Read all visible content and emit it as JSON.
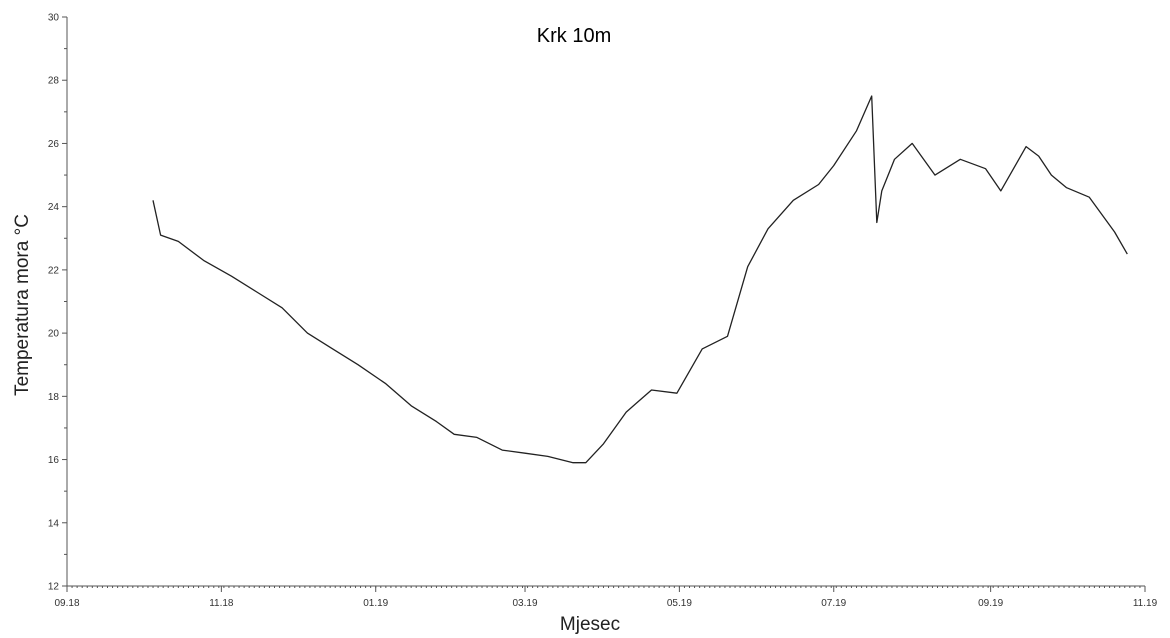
{
  "chart_data": {
    "type": "line",
    "title": "Krk 10m",
    "xlabel": "Mjesec",
    "ylabel": "Temperatura mora °C",
    "ylim": [
      12,
      30
    ],
    "y_ticks": [
      "12",
      "14",
      "16",
      "18",
      "20",
      "22",
      "24",
      "26",
      "28",
      "30"
    ],
    "x_ticks": [
      "09.18",
      "11.18",
      "01.19",
      "03.19",
      "05.19",
      "07.19",
      "09.19",
      "11.19"
    ],
    "xlim": [
      "2018-09-01",
      "2019-11-01"
    ],
    "grid": false,
    "line_color": "#222222",
    "series": [
      {
        "x": [
          "2018-10-05",
          "2018-10-08",
          "2018-10-15",
          "2018-10-25",
          "2018-11-05",
          "2018-11-15",
          "2018-11-25",
          "2018-12-05",
          "2018-12-15",
          "2018-12-25",
          "2019-01-05",
          "2019-01-15",
          "2019-01-25",
          "2019-02-01",
          "2019-02-10",
          "2019-02-20",
          "2019-03-01",
          "2019-03-10",
          "2019-03-20",
          "2019-03-25",
          "2019-04-01",
          "2019-04-10",
          "2019-04-20",
          "2019-04-30",
          "2019-05-10",
          "2019-05-20",
          "2019-05-28",
          "2019-06-05",
          "2019-06-15",
          "2019-06-25",
          "2019-07-01",
          "2019-07-10",
          "2019-07-16",
          "2019-07-18",
          "2019-07-20",
          "2019-07-25",
          "2019-08-01",
          "2019-08-10",
          "2019-08-20",
          "2019-08-30",
          "2019-09-05",
          "2019-09-15",
          "2019-09-20",
          "2019-09-25",
          "2019-10-01",
          "2019-10-10",
          "2019-10-20",
          "2019-10-25"
        ],
        "values": [
          24.2,
          23.1,
          22.9,
          22.3,
          21.8,
          21.3,
          20.8,
          20.0,
          19.5,
          19.0,
          18.4,
          17.7,
          17.2,
          16.8,
          16.7,
          16.3,
          16.2,
          16.1,
          15.9,
          15.9,
          16.5,
          17.5,
          18.2,
          18.1,
          19.5,
          19.9,
          22.1,
          23.3,
          24.2,
          24.7,
          25.3,
          26.4,
          27.5,
          23.5,
          24.5,
          25.5,
          26.0,
          25.0,
          25.5,
          25.2,
          24.5,
          25.9,
          25.6,
          25.0,
          24.6,
          24.3,
          23.2,
          22.5
        ]
      }
    ]
  }
}
